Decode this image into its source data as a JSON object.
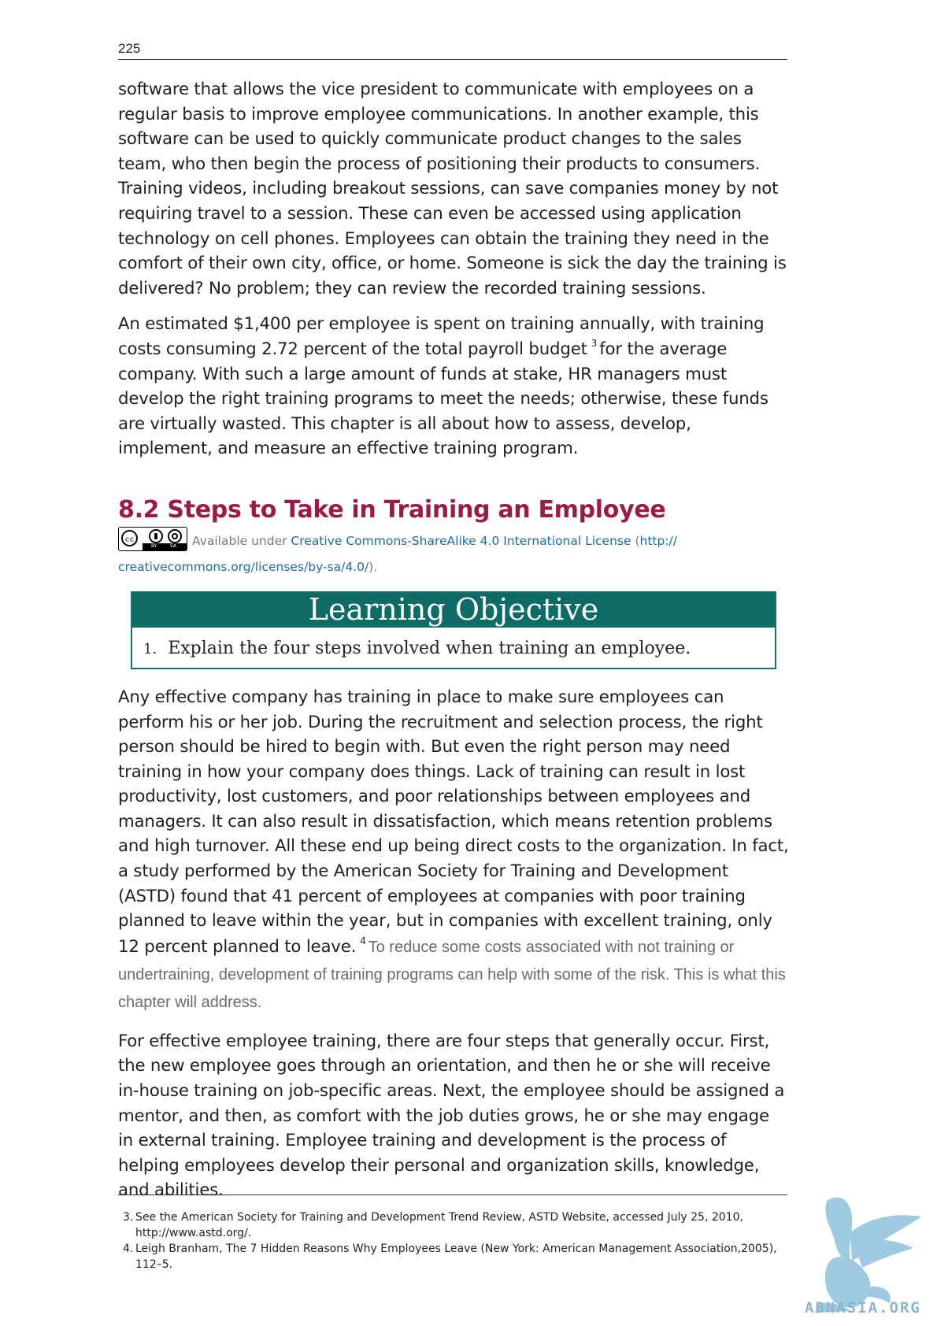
{
  "page": {
    "number": "225"
  },
  "paragraphs": {
    "p1": "software that allows the vice president to communicate with employees on a regular basis to improve employee communications. In another example, this software can be used to quickly communicate product changes to the sales team, who then begin the process of positioning their products to consumers. Training videos, including breakout sessions, can save companies money by not requiring travel to a session. These can even be accessed using application technology on cell phones. Employees can obtain the training they need in the comfort of their own city, office, or home. Someone is sick the day the training is delivered? No problem; they can review the recorded training sessions.",
    "p2_before": "An estimated $1,400 per employee is spent on training annually, with training costs consuming 2.72 percent of the total payroll budget",
    "p2_fn": "3",
    "p2_after": "for the average company. With such a large amount of funds at stake, HR managers must develop the right training programs to meet the needs; otherwise, these funds are virtually wasted. This chapter is all about how to assess, develop, implement, and measure an effective training program.",
    "p3_before": "Any effective company has training in place to make sure employees can perform his or her job. During the recruitment and selection process, the right person should be hired to begin with. But even the right person may need training in how your company does things. Lack of training can result in lost productivity, lost customers, and poor relationships between employees and managers. It can also result in dissatisfaction, which means retention problems and high turnover. All these end up being direct costs to the organization. In fact, a study performed by the American Society for Training and Development (ASTD) found that 41 percent of employees at companies with poor training planned to leave within the year, but in companies with excellent training, only 12 percent planned to leave.",
    "p3_fn": "4",
    "p3_gray": "To reduce some costs associated with not training or undertraining, development of training programs can help with some of the risk. This is what this chapter will address.",
    "p4": "For effective employee training, there are four steps that generally occur. First, the new employee goes through an orientation, and then he or she will receive in-house training on job-specific areas. Next, the employee should be assigned a mentor, and then, as comfort with the job duties grows, he or she may engage in external training. Employee training and development is the process of helping employees develop their personal and organization skills, knowledge, and abilities."
  },
  "section": {
    "heading": "8.2 Steps to Take in Training an Employee",
    "license_prefix": "Available under",
    "license_link": "Creative Commons-ShareAlike 4.0 International License",
    "license_paren_open": " (",
    "license_url_1": "http://",
    "license_url_2": "creativecommons.org/licenses/by-sa/4.0/",
    "license_paren_close": ").",
    "badge": {
      "cc": "cc",
      "by": "BY",
      "sa": "SA"
    }
  },
  "learning_objective": {
    "title": "Learning Objective",
    "items": [
      {
        "num": "1.",
        "text": "Explain the four steps involved when training an employee."
      }
    ]
  },
  "footnotes": [
    {
      "num": "3.",
      "text": "See the American Society for Training and Development Trend Review, ASTD Website, accessed July 25, 2010, http://www.astd.org/."
    },
    {
      "num": "4.",
      "text": "Leigh Branham, The 7 Hidden Reasons Why Employees Leave (New York: American Management Association,2005), 112–5."
    }
  ],
  "watermark": {
    "text": "ABNASIA.ORG",
    "icon": "griffin-logo",
    "color": "#8cb6cc"
  },
  "colors": {
    "heading": "#9b1b42",
    "link": "#1f6aa5",
    "lo_header": "#0f6b66",
    "gray_text": "#6b6b6b"
  }
}
